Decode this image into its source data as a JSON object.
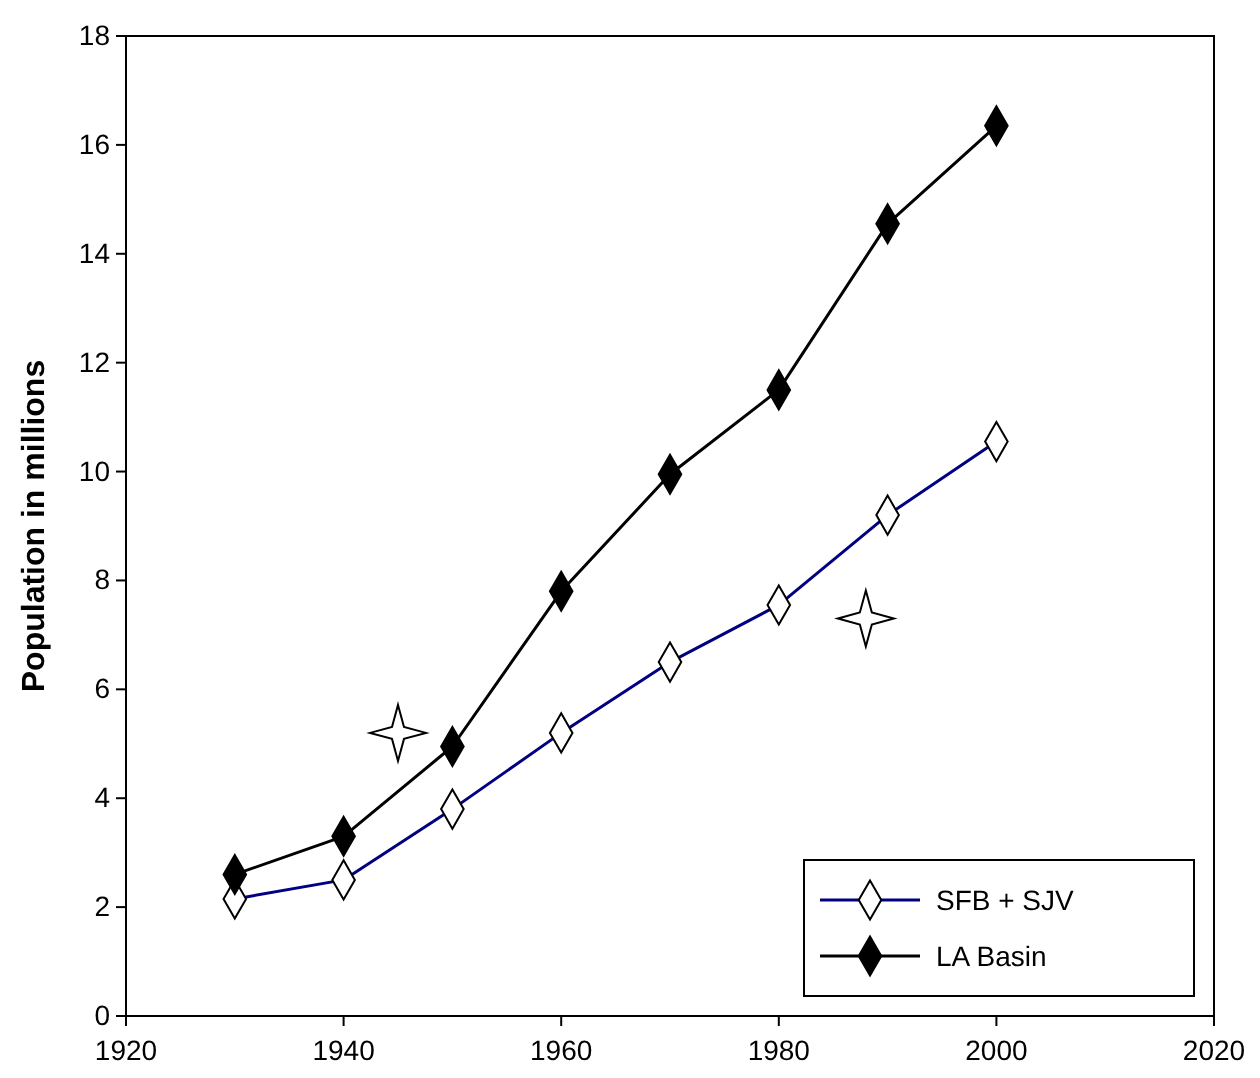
{
  "chart_data": {
    "type": "line",
    "ylabel": "Population in millions",
    "x": [
      1930,
      1940,
      1950,
      1960,
      1970,
      1980,
      1990,
      2000
    ],
    "series": [
      {
        "name": "SFB + SJV",
        "color": "#000080",
        "values": [
          2.15,
          2.5,
          3.8,
          5.2,
          6.5,
          7.55,
          9.2,
          10.55
        ]
      },
      {
        "name": "LA Basin",
        "color": "#000000",
        "values": [
          2.6,
          3.3,
          4.95,
          7.8,
          9.95,
          11.5,
          14.55,
          16.35
        ]
      }
    ],
    "xlim": [
      1920,
      2020
    ],
    "xticks": [
      1920,
      1940,
      1960,
      1980,
      2000,
      2020
    ],
    "ylim": [
      0,
      18
    ],
    "yticks": [
      0,
      2,
      4,
      6,
      8,
      10,
      12,
      14,
      16,
      18
    ],
    "marker": "diamond",
    "line_style": "solid",
    "grid": false,
    "legend": "bottom right"
  }
}
